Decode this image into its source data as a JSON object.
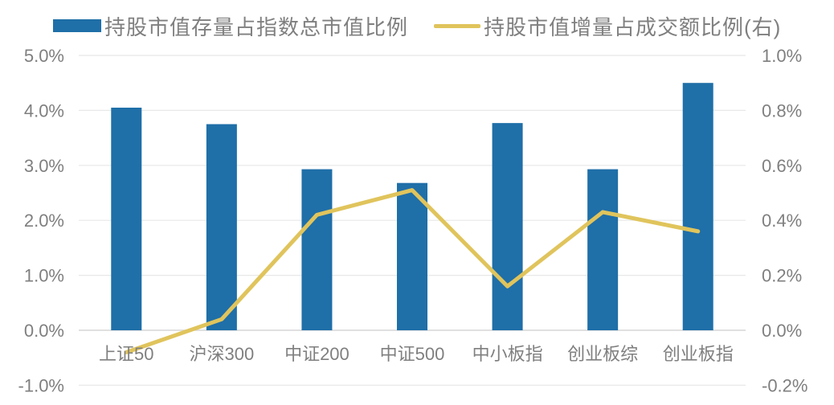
{
  "legend": {
    "items": [
      {
        "label": "持股市值存量占指数总市值比例",
        "swatch": "bar",
        "color": "#1F6FA8"
      },
      {
        "label": "持股市值增量占成交额比例(右)",
        "swatch": "line",
        "color": "#E0C45C"
      }
    ]
  },
  "chart_data": {
    "type": "bar",
    "subtype": "dual-axis bar + line combo",
    "title": "",
    "categories": [
      "上证50",
      "沪深300",
      "中证200",
      "中证500",
      "中小板指",
      "创业板综",
      "创业板指"
    ],
    "series": [
      {
        "name": "持股市值存量占指数总市值比例",
        "type": "bar",
        "axis": "left",
        "color": "#1F6FA8",
        "values": [
          4.05,
          3.75,
          2.93,
          2.68,
          3.77,
          2.93,
          4.5
        ]
      },
      {
        "name": "持股市值增量占成交额比例(右)",
        "type": "line",
        "axis": "right",
        "color": "#E0C45C",
        "values": [
          -0.08,
          0.04,
          0.42,
          0.51,
          0.16,
          0.43,
          0.36
        ]
      }
    ],
    "left_axis": {
      "tick_labels": [
        "5.0%",
        "4.0%",
        "3.0%",
        "2.0%",
        "1.0%",
        "0.0%",
        "-1.0%"
      ],
      "tick_values": [
        5,
        4,
        3,
        2,
        1,
        0,
        -1
      ],
      "range": [
        -1,
        5
      ]
    },
    "right_axis": {
      "tick_labels": [
        "1.0%",
        "0.8%",
        "0.6%",
        "0.4%",
        "0.2%",
        "0.0%",
        "-0.2%"
      ],
      "tick_values": [
        1.0,
        0.8,
        0.6,
        0.4,
        0.2,
        0.0,
        -0.2
      ],
      "range": [
        -0.2,
        1.0
      ]
    },
    "grid": true,
    "legend_position": "top"
  },
  "colors": {
    "bar": "#1F6FA8",
    "line": "#E0C45C",
    "text": "#7F7F7F",
    "gridline": "#E8E8E8",
    "zero_axis": "#D6D6D6",
    "background": "#FFFFFF"
  }
}
